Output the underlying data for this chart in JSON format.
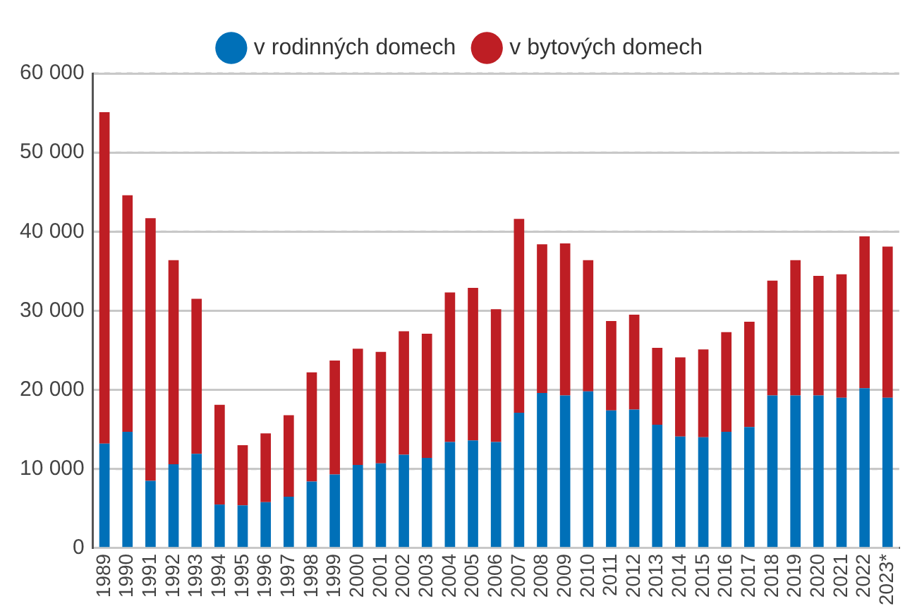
{
  "chart_data": {
    "type": "bar",
    "stacked": true,
    "categories": [
      "1989",
      "1990",
      "1991",
      "1992",
      "1993",
      "1994",
      "1995",
      "1996",
      "1997",
      "1998",
      "1999",
      "2000",
      "2001",
      "2002",
      "2003",
      "2004",
      "2005",
      "2006",
      "2007",
      "2008",
      "2009",
      "2010",
      "2011",
      "2012",
      "2013",
      "2014",
      "2015",
      "2016",
      "2017",
      "2018",
      "2019",
      "2020",
      "2021",
      "2022",
      "2023*"
    ],
    "series": [
      {
        "name": "v rodinných domech",
        "color": "#0070b8",
        "values": [
          13200,
          14700,
          8500,
          10600,
          11900,
          5500,
          5400,
          5800,
          6500,
          8400,
          9300,
          10500,
          10700,
          11800,
          11400,
          13400,
          13600,
          13400,
          17100,
          19600,
          19300,
          19800,
          17400,
          17500,
          15600,
          14100,
          14000,
          14700,
          15300,
          19300,
          19300,
          19300,
          19000,
          20200,
          19000
        ]
      },
      {
        "name": "v bytových domech",
        "color": "#be1e24",
        "values": [
          41900,
          29900,
          33200,
          25800,
          19600,
          12600,
          7600,
          8700,
          10300,
          13800,
          14400,
          14700,
          14100,
          15600,
          15700,
          18900,
          19300,
          16800,
          24500,
          18800,
          19200,
          16600,
          11300,
          12000,
          9700,
          10000,
          11100,
          12600,
          13300,
          14500,
          17100,
          15100,
          15600,
          19200,
          19100
        ]
      }
    ],
    "ylim": [
      0,
      60000
    ],
    "yticks": [
      {
        "value": 0,
        "label": "0"
      },
      {
        "value": 10000,
        "label": "10 000"
      },
      {
        "value": 20000,
        "label": "20 000"
      },
      {
        "value": 30000,
        "label": "30 000"
      },
      {
        "value": 40000,
        "label": "40 000"
      },
      {
        "value": 50000,
        "label": "50 000"
      },
      {
        "value": 60000,
        "label": "60 000"
      }
    ],
    "grid": "y",
    "legend": "top"
  }
}
